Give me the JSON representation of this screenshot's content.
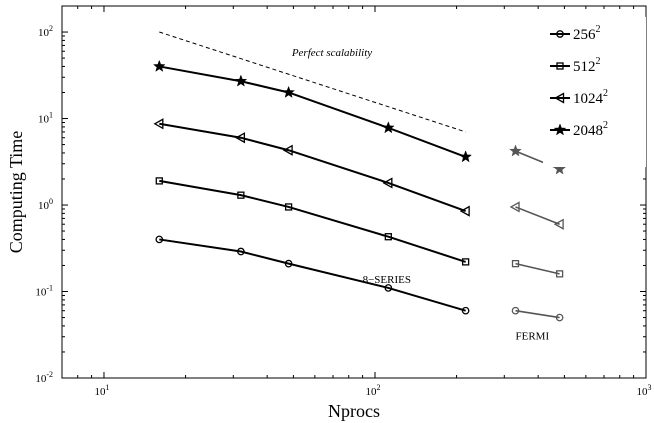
{
  "chart_data": {
    "type": "line",
    "xlabel": "Nprocs",
    "ylabel": "Computing Time",
    "xscale": "log",
    "yscale": "log",
    "xlim": [
      7,
      1000
    ],
    "ylim": [
      0.01,
      200
    ],
    "x_ticks": [
      {
        "value": 10,
        "base": "10",
        "exp": "1"
      },
      {
        "value": 100,
        "base": "10",
        "exp": "2"
      },
      {
        "value": 1000,
        "base": "10",
        "exp": "3"
      }
    ],
    "y_ticks": [
      {
        "value": 0.01,
        "base": "10",
        "exp": "-2"
      },
      {
        "value": 0.1,
        "base": "10",
        "exp": "-1"
      },
      {
        "value": 1,
        "base": "10",
        "exp": "0"
      },
      {
        "value": 10,
        "base": "10",
        "exp": "1"
      },
      {
        "value": 100,
        "base": "10",
        "exp": "2"
      }
    ],
    "grid": false,
    "legend_position": "top-right",
    "series": [
      {
        "name": "256",
        "name_sup": "2",
        "marker": "circle",
        "x": [
          16,
          32,
          48,
          112,
          216
        ],
        "y": [
          0.4,
          0.29,
          0.21,
          0.11,
          0.06
        ]
      },
      {
        "name": "512",
        "name_sup": "2",
        "marker": "square",
        "x": [
          16,
          32,
          48,
          112,
          216
        ],
        "y": [
          1.9,
          1.3,
          0.95,
          0.43,
          0.22
        ]
      },
      {
        "name": "1024",
        "name_sup": "2",
        "marker": "triangle-left",
        "x": [
          16,
          32,
          48,
          112,
          216
        ],
        "y": [
          8.7,
          6.0,
          4.3,
          1.8,
          0.85
        ]
      },
      {
        "name": "2048",
        "name_sup": "2",
        "marker": "star",
        "x": [
          16,
          32,
          48,
          112,
          216
        ],
        "y": [
          40,
          27,
          20,
          7.8,
          3.6
        ]
      }
    ],
    "fermi_series": [
      {
        "marker": "circle",
        "x": [
          330,
          480
        ],
        "y": [
          0.06,
          0.05
        ]
      },
      {
        "marker": "square",
        "x": [
          330,
          480
        ],
        "y": [
          0.21,
          0.16
        ]
      },
      {
        "marker": "triangle-left",
        "x": [
          330,
          480
        ],
        "y": [
          0.95,
          0.6
        ]
      },
      {
        "marker": "star",
        "x": [
          330,
          480
        ],
        "y": [
          4.2,
          2.6
        ]
      }
    ],
    "reference_line": {
      "label": "Perfect scalability",
      "x": [
        16,
        216
      ],
      "y": [
        100,
        7
      ]
    },
    "annotations": [
      {
        "text": "8−SERIES",
        "x": 90,
        "y": 0.125
      },
      {
        "text": "FERMI",
        "x": 330,
        "y": 0.028
      }
    ]
  }
}
